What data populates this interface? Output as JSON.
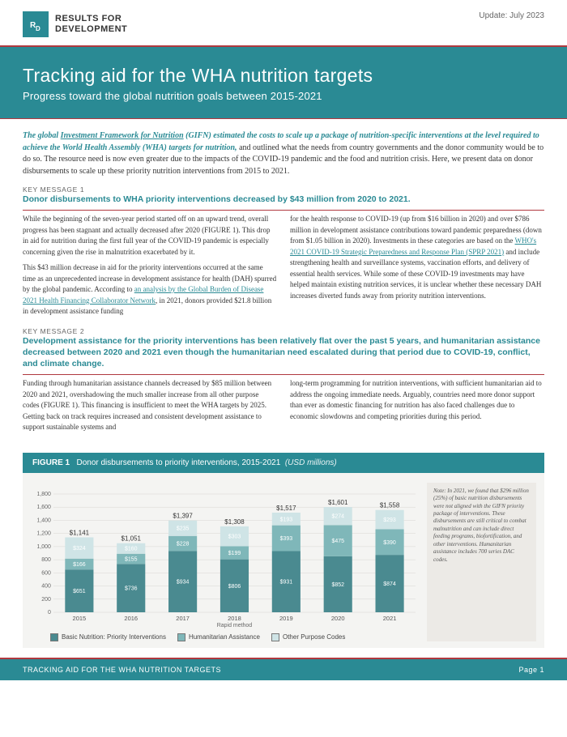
{
  "header": {
    "org_line1": "RESULTS FOR",
    "org_line2": "DEVELOPMENT",
    "logo_initials": "R4D",
    "update": "Update: July 2023"
  },
  "hero": {
    "title": "Tracking aid for the WHA nutrition targets",
    "subtitle": "Progress toward the global nutrition goals between 2015-2021"
  },
  "intro": {
    "lead_pre": "The global ",
    "lead_link": "Investment Framework for Nutrition",
    "lead_post": " (GIFN) estimated the costs to scale up a package of nutrition-specific interventions at the level required to achieve the World Health Assembly (WHA) targets for nutrition,",
    "rest": " and outlined what the needs from country governments and the donor community would be to do so. The resource need is now even greater due to the impacts of the COVID-19 pandemic and the food and nutrition crisis. Here, we present data on donor disbursements to scale up these priority nutrition interventions from 2015 to 2021."
  },
  "km1": {
    "label": "KEY MESSAGE 1",
    "head": "Donor disbursements to WHA priority interventions decreased by $43 million from 2020 to 2021.",
    "col1p1": "While the beginning of the seven-year period started off on an upward trend, overall progress has been stagnant and actually decreased after 2020 (FIGURE 1). This drop in aid for nutrition during the first full year of the COVID-19 pandemic is especially concerning given the rise in malnutrition exacerbated by it.",
    "col1p2a": "This $43 million decrease in aid for the priority interventions occurred at the same time as an unprecedented increase in development assistance for health (DAH) spurred by the global pandemic. According to ",
    "col1p2_link": "an analysis by the Global Burden of Disease 2021 Health Financing Collaborator Network",
    "col1p2b": ", in 2021, donors provided $21.8 billion in development assistance funding",
    "col2a": "for the health response to COVID-19 (up from $16 billion in 2020) and over $786 million in development assistance contributions toward pandemic preparedness (down from $1.05 billion in 2020). Investments in these categories are based on the ",
    "col2_link": "WHO's 2021 COVID-19 Strategic Preparedness and Response Plan (SPRP 2021)",
    "col2b": " and include strengthening health and surveillance systems, vaccination efforts, and delivery of essential health services. While some of these COVID-19 investments may have helped maintain existing nutrition services, it is unclear whether these necessary DAH increases diverted funds away from priority nutrition interventions."
  },
  "km2": {
    "label": "KEY MESSAGE 2",
    "head": "Development assistance for the priority interventions has been relatively flat over the past 5 years, and humanitarian assistance decreased between 2020 and 2021 even though the humanitarian need escalated during that period due to COVID-19, conflict, and climate change.",
    "col1": "Funding through humanitarian assistance channels decreased by $85 million between 2020 and 2021, overshadowing the much smaller increase from all other purpose codes (FIGURE 1). This financing is insufficient to meet the WHA targets by 2025. Getting back on track requires increased and consistent development assistance to support sustainable systems and",
    "col2": "long-term programming for nutrition interventions, with sufficient humanitarian aid to address the ongoing immediate needs. Arguably, countries need more donor support than ever as domestic financing for nutrition has also faced challenges due to economic slowdowns and competing priorities during this period."
  },
  "figure": {
    "label": "FIGURE 1",
    "title": "Donor disbursements to priority interventions, 2015-2021",
    "units": "(USD millions)",
    "type": "stacked-bar",
    "x_axis_title": "Rapid method",
    "ylim": [
      0,
      1800
    ],
    "ytick_step": 200,
    "yticks": [
      0,
      200,
      400,
      600,
      800,
      1000,
      1200,
      1400,
      1600,
      1800
    ],
    "categories": [
      "2015",
      "2016",
      "2017",
      "2018",
      "2019",
      "2020",
      "2021"
    ],
    "series": [
      {
        "name": "Basic Nutrition: Priority Interventions",
        "color": "#4a8a90",
        "values": [
          651,
          736,
          934,
          806,
          931,
          852,
          874
        ]
      },
      {
        "name": "Humanitarian Assistance",
        "color": "#7fb7b9",
        "values": [
          166,
          155,
          228,
          199,
          393,
          475,
          390
        ]
      },
      {
        "name": "Other Purpose Codes",
        "color": "#cfe4e6",
        "values": [
          324,
          160,
          235,
          303,
          193,
          274,
          293
        ]
      }
    ],
    "totals": [
      "$1,141",
      "$1,051",
      "$1,397",
      "$1,308",
      "$1,517",
      "$1,601",
      "$1,558"
    ],
    "value_labels": [
      [
        "$651",
        "$166",
        "$324"
      ],
      [
        "$736",
        "$155",
        "$160"
      ],
      [
        "$934",
        "$228",
        "$235"
      ],
      [
        "$806",
        "$199",
        "$303"
      ],
      [
        "$931",
        "$393",
        "$193"
      ],
      [
        "$852",
        "$475",
        "$274"
      ],
      [
        "$874",
        "$390",
        "$293"
      ]
    ],
    "background_color": "#f4f4f2",
    "grid_color": "#d8d6d2",
    "bar_width": 0.55,
    "note": "Note: In 2021, we found that $296 million (25%) of basic nutrition disbursements were not aligned with the GIFN priority package of interventions. These disbursements are still critical to combat malnutrition and can include direct feeding programs, biofortification, and other interventions. Humanitarian assistance includes 700 series DAC codes."
  },
  "footer": {
    "left": "TRACKING AID FOR THE WHA NUTRITION TARGETS",
    "right": "Page 1"
  },
  "colors": {
    "teal": "#2a8a94",
    "red": "#b0393f"
  }
}
